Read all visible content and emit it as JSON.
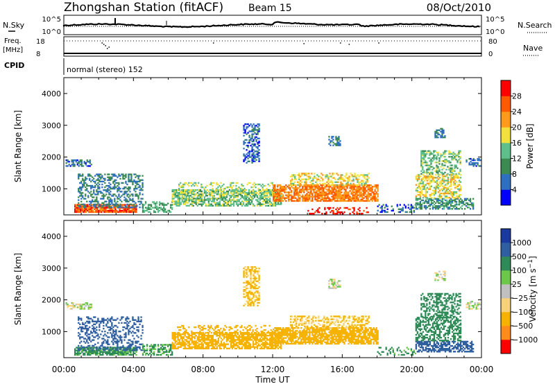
{
  "header": {
    "title": "Zhongshan Station (fitACF)",
    "beam": "Beam 15",
    "date": "08/Oct/2010"
  },
  "status_panel": {
    "nsky_label": "N.Sky",
    "nsearch_label": "N.Search",
    "nsky_ticks": [
      "10^5",
      "10^0"
    ],
    "nsearch_ticks": [
      "10^5",
      "10^0"
    ],
    "freq_label_1": "Freq.",
    "freq_label_2": "[MHz]",
    "freq_ticks": [
      "18",
      "8"
    ],
    "nave_label": "Nave",
    "nave_ticks": [
      "80",
      "0"
    ],
    "cpid_label": "CPID",
    "cpid_text": "normal (stereo) 152"
  },
  "time_axis": {
    "ticks": [
      "00:00",
      "04:00",
      "08:00",
      "12:00",
      "16:00",
      "20:00",
      "00:00"
    ],
    "label": "Time UT"
  },
  "colors": {
    "power_scale": [
      "#0000ff",
      "#2f6fbf",
      "#3c8a52",
      "#5fbf8a",
      "#f2e03c",
      "#ff9a1a",
      "#ff5a00",
      "#ff0000"
    ],
    "velocity_scale": [
      "#ff0000",
      "#ff8c1a",
      "#f5b300",
      "#f7d27a",
      "#c0c0c0",
      "#6cc84a",
      "#2e8b57",
      "#2f5fa0",
      "#1a3a9f"
    ]
  },
  "chart_data": [
    {
      "type": "heatmap",
      "name": "power",
      "ylabel": "Slant Range [km]",
      "ylim": [
        180,
        4500
      ],
      "yticks": [
        "4000",
        "3000",
        "2000",
        "1000"
      ],
      "xlim": [
        0,
        24
      ],
      "colorbar": {
        "label": "Power [dB]",
        "ticks": [
          "28",
          "24",
          "20",
          "16",
          "12",
          "8",
          "4"
        ],
        "range": [
          0,
          32
        ]
      },
      "blobs": [
        {
          "t0": 0.6,
          "t1": 4.2,
          "r0": 250,
          "r1": 500,
          "value": 26,
          "dens": 0.85
        },
        {
          "t0": 0.8,
          "t1": 4.5,
          "r0": 400,
          "r1": 1450,
          "value": 8,
          "dens": 0.4
        },
        {
          "t0": 0.1,
          "t1": 1.6,
          "r0": 1700,
          "r1": 1900,
          "value": 6,
          "dens": 0.55
        },
        {
          "t0": 4.5,
          "t1": 6.2,
          "r0": 250,
          "r1": 600,
          "value": 12,
          "dens": 0.5
        },
        {
          "t0": 6.2,
          "t1": 12.5,
          "r0": 450,
          "r1": 950,
          "value": 14,
          "dens": 0.65
        },
        {
          "t0": 6.5,
          "t1": 12.0,
          "r0": 850,
          "r1": 1200,
          "value": 16,
          "dens": 0.3
        },
        {
          "t0": 10.3,
          "t1": 11.2,
          "r0": 1800,
          "r1": 3050,
          "value": 6,
          "dens": 0.45
        },
        {
          "t0": 12.0,
          "t1": 18.0,
          "r0": 600,
          "r1": 1100,
          "value": 24,
          "dens": 0.75
        },
        {
          "t0": 13.0,
          "t1": 17.5,
          "r0": 1100,
          "r1": 1500,
          "value": 18,
          "dens": 0.45
        },
        {
          "t0": 15.2,
          "t1": 15.9,
          "r0": 2350,
          "r1": 2650,
          "value": 8,
          "dens": 0.6
        },
        {
          "t0": 14.0,
          "t1": 17.5,
          "r0": 200,
          "r1": 400,
          "value": 30,
          "dens": 0.35
        },
        {
          "t0": 18.0,
          "t1": 20.2,
          "r0": 250,
          "r1": 500,
          "value": 6,
          "dens": 0.3
        },
        {
          "t0": 20.2,
          "t1": 23.5,
          "r0": 350,
          "r1": 700,
          "value": 10,
          "dens": 0.6
        },
        {
          "t0": 20.2,
          "t1": 22.8,
          "r0": 700,
          "r1": 1450,
          "value": 18,
          "dens": 0.55
        },
        {
          "t0": 20.5,
          "t1": 22.8,
          "r0": 1450,
          "r1": 2200,
          "value": 14,
          "dens": 0.45
        },
        {
          "t0": 21.3,
          "t1": 21.9,
          "r0": 2600,
          "r1": 2900,
          "value": 8,
          "dens": 0.5
        },
        {
          "t0": 23.1,
          "t1": 23.9,
          "r0": 1700,
          "r1": 1950,
          "value": 6,
          "dens": 0.45
        }
      ]
    },
    {
      "type": "heatmap",
      "name": "velocity",
      "ylabel": "Slant Range [km]",
      "ylim": [
        180,
        4500
      ],
      "yticks": [
        "4000",
        "3000",
        "2000",
        "1000"
      ],
      "xlim": [
        0,
        24
      ],
      "colorbar": {
        "label": "Velocity [m s^-1]",
        "ticks": [
          "1000",
          "500",
          "100",
          "25",
          "−25",
          "−100",
          "−500",
          "−1000"
        ],
        "bins": [
          "-1000",
          "-500",
          "-100",
          "-25",
          "0",
          "25",
          "100",
          "500",
          "1000"
        ]
      },
      "blobs": [
        {
          "t0": 0.6,
          "t1": 4.2,
          "r0": 250,
          "r1": 500,
          "value": 150,
          "dens": 0.8
        },
        {
          "t0": 0.8,
          "t1": 4.5,
          "r0": 400,
          "r1": 1450,
          "value": 600,
          "dens": 0.35
        },
        {
          "t0": 0.1,
          "t1": 1.6,
          "r0": 1700,
          "r1": 1900,
          "value": 0,
          "dens": 0.55
        },
        {
          "t0": 4.5,
          "t1": 6.2,
          "r0": 250,
          "r1": 600,
          "value": 120,
          "dens": 0.5
        },
        {
          "t0": 6.2,
          "t1": 12.5,
          "r0": 450,
          "r1": 950,
          "value": -300,
          "dens": 0.7
        },
        {
          "t0": 6.5,
          "t1": 12.0,
          "r0": 850,
          "r1": 1200,
          "value": -200,
          "dens": 0.3
        },
        {
          "t0": 10.3,
          "t1": 11.2,
          "r0": 1800,
          "r1": 3050,
          "value": -150,
          "dens": 0.45
        },
        {
          "t0": 12.0,
          "t1": 18.0,
          "r0": 600,
          "r1": 1100,
          "value": -220,
          "dens": 0.75
        },
        {
          "t0": 13.0,
          "t1": 17.5,
          "r0": 1100,
          "r1": 1500,
          "value": -120,
          "dens": 0.45
        },
        {
          "t0": 15.2,
          "t1": 15.9,
          "r0": 2350,
          "r1": 2650,
          "value": 0,
          "dens": 0.6
        },
        {
          "t0": 18.0,
          "t1": 20.2,
          "r0": 250,
          "r1": 500,
          "value": 150,
          "dens": 0.3
        },
        {
          "t0": 20.2,
          "t1": 23.5,
          "r0": 350,
          "r1": 700,
          "value": 700,
          "dens": 0.6
        },
        {
          "t0": 20.2,
          "t1": 22.8,
          "r0": 700,
          "r1": 1450,
          "value": 250,
          "dens": 0.55
        },
        {
          "t0": 20.5,
          "t1": 22.8,
          "r0": 1450,
          "r1": 2200,
          "value": 200,
          "dens": 0.45
        },
        {
          "t0": 21.3,
          "t1": 21.9,
          "r0": 2600,
          "r1": 2900,
          "value": 0,
          "dens": 0.5
        },
        {
          "t0": 23.1,
          "t1": 23.9,
          "r0": 1700,
          "r1": 1950,
          "value": 0,
          "dens": 0.45
        }
      ]
    }
  ]
}
